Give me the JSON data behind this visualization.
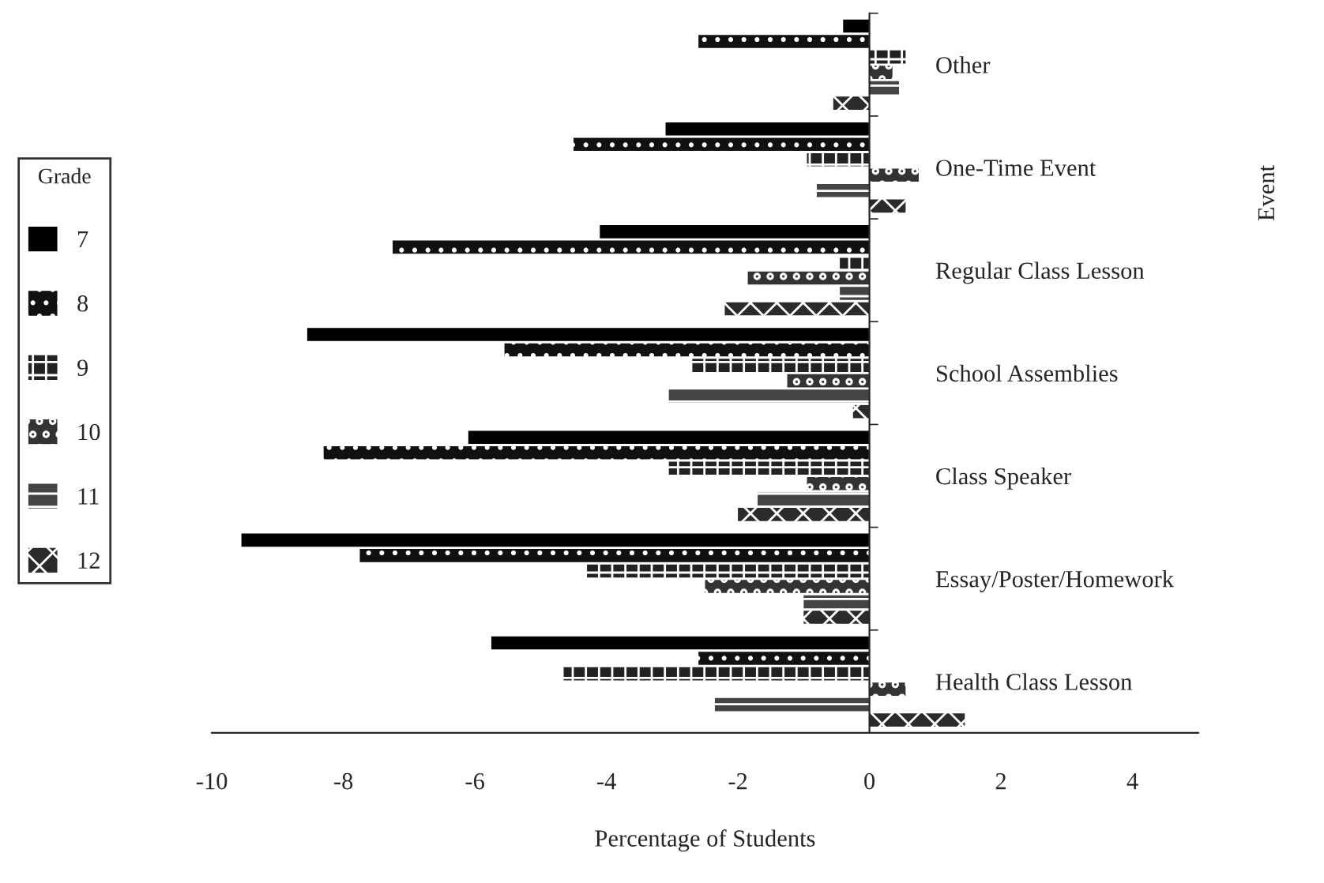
{
  "chart_data": {
    "type": "bar",
    "orientation": "horizontal",
    "xlabel": "Percentage of Students",
    "ylabel": "Event",
    "legend_title": "Grade",
    "legend": "left",
    "categories": [
      "Other",
      "One-Time Event",
      "Regular Class Lesson",
      "School Assemblies",
      "Class Speaker",
      "Essay/Poster/Homework",
      "Health Class Lesson"
    ],
    "series": [
      {
        "name": "7",
        "color": "#000000",
        "values": [
          -0.4,
          -3.1,
          -4.1,
          -8.55,
          -6.1,
          -9.55,
          -5.75
        ]
      },
      {
        "name": "8",
        "color": "#111111",
        "values": [
          -2.6,
          -4.5,
          -7.25,
          -5.55,
          -8.3,
          -7.75,
          -2.6
        ]
      },
      {
        "name": "9",
        "color": "#222222",
        "values": [
          0.55,
          -0.95,
          -0.45,
          -2.7,
          -3.05,
          -4.3,
          -4.65
        ]
      },
      {
        "name": "10",
        "color": "#333333",
        "values": [
          0.35,
          0.75,
          -1.85,
          -1.25,
          -0.95,
          -2.5,
          0.55
        ]
      },
      {
        "name": "11",
        "color": "#444444",
        "values": [
          0.45,
          -0.8,
          -0.45,
          -3.05,
          -1.7,
          -1.0,
          -2.35
        ]
      },
      {
        "name": "12",
        "color": "#2b2b2b",
        "values": [
          -0.55,
          0.55,
          -2.2,
          -0.25,
          -2.0,
          -1.0,
          1.45
        ]
      }
    ],
    "xlim": [
      -10,
      5
    ],
    "xticks": [
      -10,
      -8,
      -6,
      -4,
      -2,
      0,
      2,
      4
    ]
  }
}
